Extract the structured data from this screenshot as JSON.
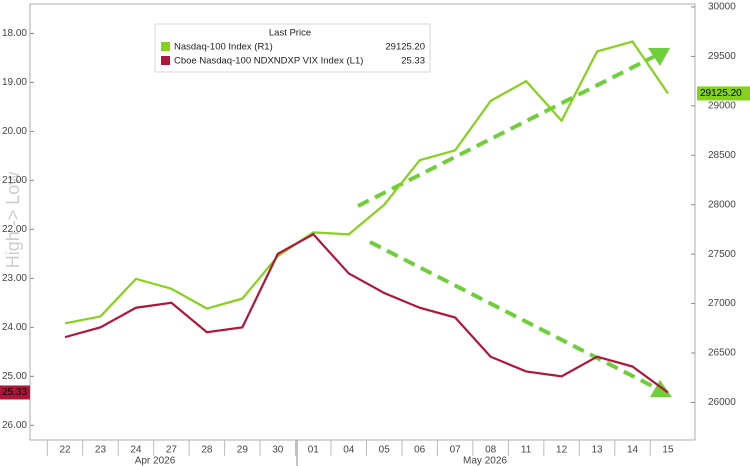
{
  "chart_data": {
    "type": "line",
    "y_axis_label": "High -> Low",
    "legend_title": "Last Price",
    "categories": [
      "22",
      "23",
      "24",
      "27",
      "28",
      "29",
      "30",
      "01",
      "04",
      "05",
      "06",
      "07",
      "08",
      "11",
      "12",
      "13",
      "14",
      "15"
    ],
    "x_groups": [
      "Apr 2026",
      "May 2026"
    ],
    "series": [
      {
        "name": "Nasdaq-100 Index  (R1)",
        "color": "#86d11c",
        "axis": "y2",
        "last_label": "29125.20",
        "values": [
          26800,
          26870,
          27250,
          27150,
          26950,
          27050,
          27480,
          27720,
          27700,
          28000,
          28450,
          28550,
          29050,
          29250,
          28850,
          29550,
          29650,
          29125.2
        ]
      },
      {
        "name": "Cboe Nasdaq-100 NDXNDXP VIX Index  (L1)",
        "color": "#b0153a",
        "axis": "y",
        "last_label": "25.33",
        "values": [
          24.2,
          24.0,
          23.6,
          23.5,
          24.1,
          24.0,
          22.5,
          22.1,
          22.9,
          23.3,
          23.6,
          23.8,
          24.6,
          24.9,
          25.0,
          24.6,
          24.8,
          25.33
        ]
      }
    ],
    "ylim": [
      17.4,
      26.3
    ],
    "y_inverted": true,
    "yticks": [
      {
        "value": 18,
        "label": "18.00"
      },
      {
        "value": 19,
        "label": "19.00"
      },
      {
        "value": 20,
        "label": "20.00"
      },
      {
        "value": 21,
        "label": "21.00"
      },
      {
        "value": 22,
        "label": "22.00"
      },
      {
        "value": 23,
        "label": "23.00"
      },
      {
        "value": 24,
        "label": "24.00"
      },
      {
        "value": 25,
        "label": "25.00"
      },
      {
        "value": 26,
        "label": "26.00"
      }
    ],
    "y2lim": [
      25620,
      30030
    ],
    "y2ticks": [
      26000,
      26500,
      27000,
      27500,
      28000,
      28500,
      29000,
      29500,
      30000
    ]
  }
}
